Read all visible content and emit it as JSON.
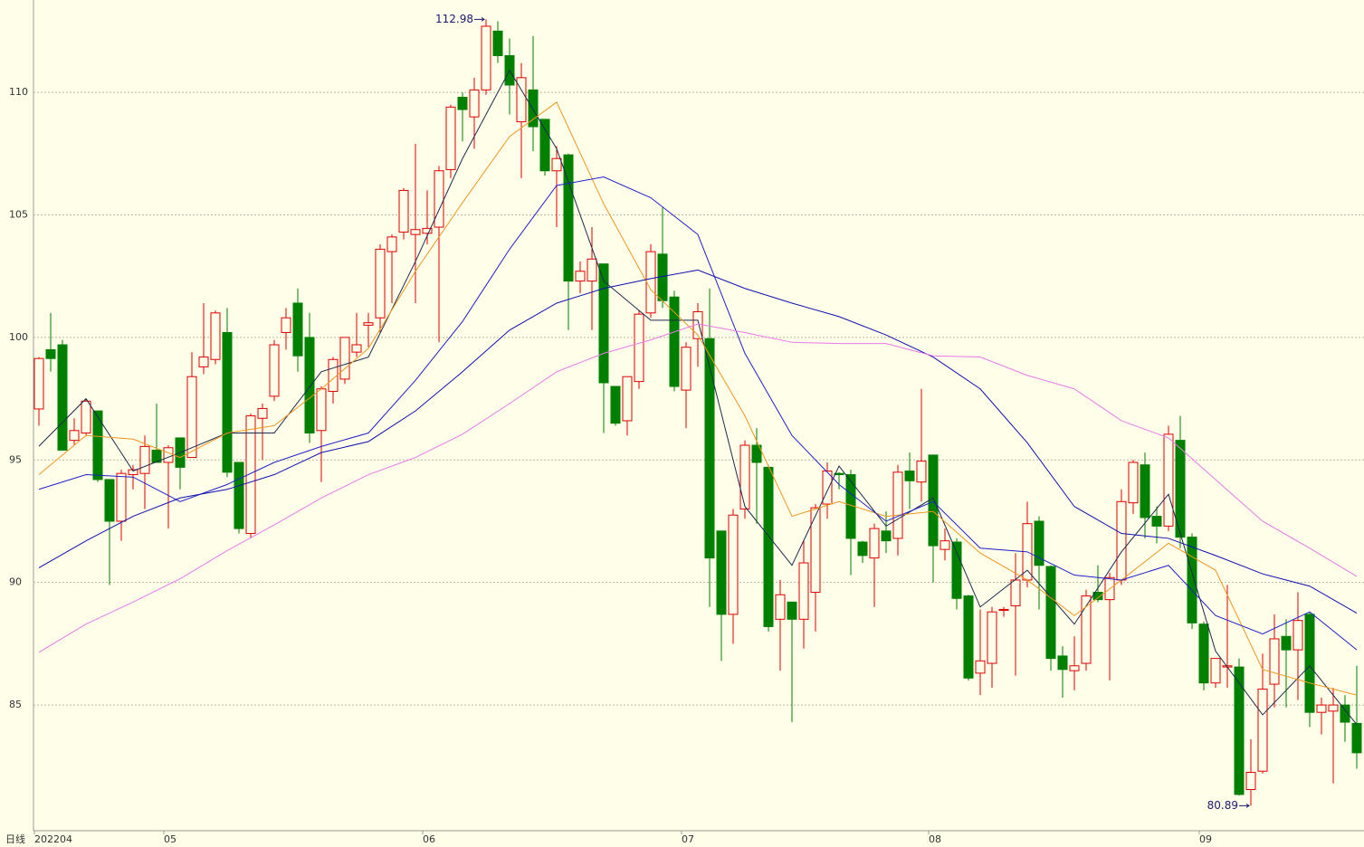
{
  "chart_data": {
    "type": "candlestick",
    "period_label": "日线",
    "categories": [
      "202204",
      null,
      null,
      null,
      null,
      null,
      null,
      null,
      null,
      null,
      null,
      "05",
      null,
      null,
      null,
      null,
      null,
      null,
      null,
      null,
      null,
      null,
      null,
      null,
      null,
      null,
      null,
      null,
      null,
      null,
      null,
      null,
      null,
      "06",
      null,
      null,
      null,
      null,
      null,
      null,
      null,
      null,
      null,
      null,
      null,
      null,
      null,
      null,
      null,
      null,
      null,
      null,
      null,
      null,
      null,
      "07",
      null,
      null,
      null,
      null,
      null,
      null,
      null,
      null,
      null,
      null,
      null,
      null,
      null,
      null,
      null,
      null,
      null,
      null,
      null,
      null,
      "08",
      null,
      null,
      null,
      null,
      null,
      null,
      null,
      null,
      null,
      null,
      null,
      null,
      null,
      null,
      null,
      null,
      null,
      null,
      null,
      null,
      null,
      null,
      "09",
      null,
      null,
      null,
      null,
      null,
      null,
      null,
      null,
      null,
      null,
      null,
      null,
      null
    ],
    "open": [
      97.08,
      99.5,
      99.7,
      95.8,
      96.1,
      97.0,
      94.2,
      92.5,
      94.4,
      94.45,
      95.4,
      94.9,
      95.9,
      95.1,
      98.8,
      99.1,
      100.2,
      94.9,
      92.0,
      96.7,
      97.6,
      100.2,
      101.4,
      100.0,
      96.2,
      97.8,
      98.3,
      99.4,
      100.5,
      100.8,
      103.5,
      104.3,
      104.2,
      104.25,
      104.5,
      106.85,
      109.8,
      109.0,
      110.1,
      112.5,
      111.5,
      108.8,
      110.1,
      108.9,
      106.8,
      107.45,
      102.3,
      102.3,
      103.0,
      98.0,
      96.6,
      98.2,
      101.0,
      103.4,
      101.65,
      97.85,
      99.95,
      99.95,
      92.1,
      88.7,
      93.0,
      95.6,
      94.7,
      88.5,
      89.2,
      88.5,
      89.6,
      93.2,
      94.45,
      94.4,
      91.65,
      91.0,
      92.1,
      91.8,
      94.55,
      94.1,
      95.2,
      91.35,
      91.65,
      89.45,
      86.3,
      86.7,
      88.9,
      89.05,
      90.1,
      92.5,
      90.65,
      87.0,
      86.4,
      86.7,
      89.6,
      89.3,
      90.1,
      93.25,
      94.8,
      92.7,
      92.3,
      95.8,
      91.85,
      88.3,
      85.9,
      86.55,
      86.55,
      81.55,
      82.3,
      85.85,
      87.8,
      87.25,
      88.7,
      84.7,
      84.75,
      85.0,
      84.25
    ],
    "high": [
      99.2,
      101.0,
      99.9,
      96.7,
      97.5,
      97.0,
      94.2,
      94.6,
      94.8,
      96.0,
      97.3,
      95.6,
      95.9,
      99.4,
      101.4,
      101.1,
      101.2,
      94.9,
      96.9,
      97.3,
      99.9,
      101.2,
      102.0,
      101.0,
      98.0,
      99.2,
      100.0,
      101.0,
      101.0,
      103.8,
      104.2,
      106.1,
      107.9,
      106.0,
      107.0,
      109.5,
      110.0,
      110.6,
      112.98,
      112.9,
      112.2,
      111.2,
      112.3,
      108.9,
      107.8,
      107.5,
      103.1,
      104.5,
      103.0,
      98.0,
      98.4,
      101.1,
      103.8,
      105.3,
      101.9,
      99.8,
      101.4,
      102.0,
      92.1,
      93.0,
      95.8,
      96.3,
      94.8,
      90.1,
      89.2,
      91.7,
      93.2,
      94.9,
      94.5,
      94.6,
      91.7,
      92.4,
      92.9,
      94.8,
      95.3,
      97.9,
      95.2,
      92.2,
      91.8,
      89.5,
      88.9,
      89.0,
      89.0,
      91.2,
      93.3,
      92.7,
      90.7,
      87.4,
      87.8,
      89.7,
      90.7,
      90.4,
      93.8,
      95.0,
      95.3,
      93.1,
      96.4,
      96.8,
      92.0,
      88.4,
      86.9,
      89.9,
      86.9,
      83.6,
      87.1,
      88.7,
      88.5,
      89.6,
      88.8,
      85.3,
      85.7,
      85.4,
      86.6
    ],
    "low": [
      96.4,
      98.6,
      95.4,
      95.6,
      96.0,
      94.1,
      89.9,
      91.7,
      93.8,
      93.0,
      94.9,
      92.2,
      93.8,
      95.1,
      98.5,
      98.9,
      94.3,
      92.0,
      91.8,
      95.0,
      97.4,
      99.5,
      98.6,
      95.7,
      94.1,
      97.3,
      98.1,
      99.2,
      99.6,
      100.2,
      101.4,
      104.0,
      101.4,
      103.8,
      99.8,
      106.5,
      108.0,
      107.7,
      109.9,
      111.2,
      109.1,
      106.5,
      107.6,
      106.6,
      104.5,
      100.3,
      101.8,
      100.3,
      96.1,
      96.4,
      96.0,
      97.9,
      100.8,
      101.2,
      97.8,
      96.3,
      98.8,
      89.0,
      86.8,
      87.5,
      92.6,
      92.4,
      88.0,
      86.4,
      84.3,
      87.3,
      88.0,
      92.6,
      93.8,
      90.3,
      90.8,
      89.0,
      91.2,
      91.1,
      93.0,
      93.3,
      90.0,
      90.9,
      88.9,
      86.0,
      85.4,
      85.7,
      88.6,
      86.2,
      89.8,
      88.9,
      86.4,
      85.3,
      85.6,
      86.4,
      89.2,
      86.0,
      89.9,
      92.8,
      91.8,
      91.6,
      92.1,
      91.4,
      88.1,
      85.6,
      85.7,
      85.7,
      81.3,
      80.89,
      82.2,
      84.9,
      84.9,
      85.2,
      84.1,
      83.8,
      81.8,
      83.5,
      82.4
    ],
    "close": [
      99.14,
      99.14,
      95.4,
      96.2,
      97.4,
      94.2,
      92.5,
      94.45,
      94.6,
      95.55,
      94.9,
      95.5,
      94.7,
      98.4,
      99.2,
      101.0,
      94.5,
      92.2,
      96.8,
      97.1,
      99.7,
      100.8,
      99.25,
      96.1,
      97.9,
      99.1,
      100.0,
      99.7,
      100.6,
      103.6,
      104.1,
      106.0,
      104.4,
      104.45,
      106.8,
      109.4,
      109.3,
      110.1,
      112.7,
      111.5,
      110.3,
      110.6,
      108.6,
      106.8,
      107.3,
      102.3,
      102.7,
      103.2,
      98.15,
      96.5,
      98.4,
      100.95,
      103.5,
      101.5,
      98.0,
      99.6,
      101.05,
      91.0,
      88.7,
      92.75,
      95.6,
      94.9,
      88.2,
      89.5,
      88.5,
      90.8,
      93.05,
      94.55,
      94.4,
      91.8,
      91.1,
      92.2,
      91.7,
      94.5,
      94.15,
      94.95,
      91.5,
      91.7,
      89.35,
      86.1,
      86.8,
      88.8,
      88.9,
      90.1,
      92.4,
      90.7,
      86.9,
      86.45,
      86.6,
      89.45,
      89.3,
      90.2,
      93.3,
      94.9,
      92.65,
      92.3,
      96.05,
      91.85,
      88.35,
      85.9,
      86.9,
      86.6,
      81.35,
      82.25,
      85.65,
      87.7,
      87.25,
      88.45,
      84.7,
      85.0,
      85.0,
      84.3,
      83.05
    ],
    "up_color": "#e00000",
    "down_color": "#008000",
    "line_x": [
      0,
      4,
      8,
      12,
      16,
      20,
      24,
      28,
      32,
      36,
      40,
      44,
      48,
      52,
      56,
      60,
      64,
      68,
      72,
      76,
      80,
      84,
      88,
      92,
      96,
      100,
      104,
      108,
      112
    ],
    "lines": [
      {
        "color": "#1c2a50",
        "values": [
          95.56,
          97.5,
          94.55,
          95.3,
          96.1,
          96.1,
          98.6,
          99.2,
          103.1,
          107.3,
          110.9,
          107.7,
          102.3,
          100.7,
          100.7,
          93.1,
          90.7,
          94.75,
          92.3,
          93.45,
          89.0,
          90.5,
          88.3,
          91.25,
          93.6,
          87.2,
          84.6,
          86.6,
          84.2
        ]
      },
      {
        "color": "#f0961e",
        "values": [
          94.4,
          96.0,
          95.85,
          95.1,
          96.1,
          96.4,
          97.9,
          99.55,
          102.7,
          105.5,
          108.2,
          109.6,
          105.45,
          101.95,
          100.1,
          96.8,
          92.7,
          93.3,
          92.7,
          92.9,
          91.2,
          90.1,
          88.65,
          90.1,
          91.6,
          90.5,
          86.45,
          85.9,
          85.4
        ]
      },
      {
        "color": "#2020c8",
        "values": [
          93.8,
          94.4,
          94.3,
          93.3,
          94.0,
          94.9,
          95.55,
          96.1,
          98.25,
          100.65,
          103.6,
          106.2,
          106.55,
          105.7,
          104.2,
          99.35,
          96.0,
          94.0,
          92.5,
          93.3,
          91.4,
          91.25,
          90.3,
          90.1,
          90.7,
          88.65,
          87.9,
          88.8,
          87.25
        ]
      },
      {
        "color": "#1010b0",
        "values": [
          90.6,
          91.7,
          92.7,
          93.45,
          93.8,
          94.4,
          95.3,
          95.75,
          97.0,
          98.6,
          100.3,
          101.4,
          102.0,
          102.4,
          102.75,
          102.0,
          101.4,
          100.85,
          100.1,
          99.2,
          97.9,
          95.7,
          93.1,
          92.0,
          91.8,
          91.1,
          90.35,
          89.85,
          88.75
        ]
      },
      {
        "color": "#e87ae8",
        "values": [
          87.15,
          88.3,
          89.2,
          90.15,
          91.3,
          92.35,
          93.45,
          94.4,
          95.1,
          96.05,
          97.3,
          98.6,
          99.35,
          99.9,
          100.55,
          100.2,
          99.8,
          99.75,
          99.75,
          99.25,
          99.2,
          98.45,
          97.9,
          96.6,
          95.9,
          94.2,
          92.5,
          91.4,
          90.25
        ]
      }
    ],
    "annotations": [
      {
        "index": 38,
        "value": 112.98
      },
      {
        "index": 103,
        "value": 80.89
      }
    ],
    "ylim": [
      79.87,
      113.77
    ],
    "yticks": [
      85,
      90,
      95,
      100,
      105,
      110
    ],
    "grid": true
  }
}
